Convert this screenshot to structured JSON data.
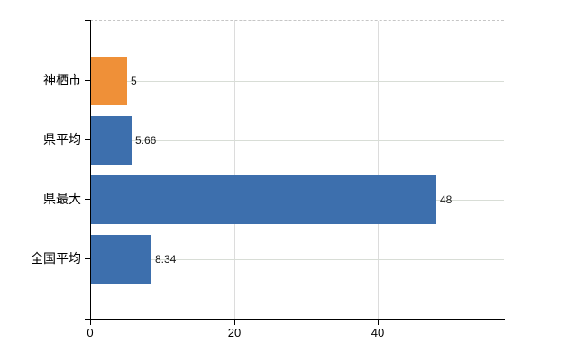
{
  "chart_data": {
    "type": "bar",
    "orientation": "horizontal",
    "title": "",
    "xlabel": "",
    "ylabel": "",
    "categories": [
      "神栖市",
      "県平均",
      "県最大",
      "全国平均"
    ],
    "values": [
      5,
      5.66,
      48,
      8.34
    ],
    "value_labels": [
      "5",
      "5.66",
      "48",
      "8.34"
    ],
    "bar_colors": [
      "#ef9038",
      "#3d6fad",
      "#3d6fad",
      "#3d6fad"
    ],
    "x_ticks": [
      0,
      20,
      40
    ],
    "x_tick_labels": [
      "0",
      "20",
      "40"
    ],
    "xlim": [
      0,
      57.55
    ],
    "grid": true,
    "legend": false,
    "colors": {
      "highlight_bar": "#ef9038",
      "default_bar": "#3d6fad",
      "horizontal_gridline": "#d8ddd6",
      "vertical_gridline": "#dcdcdc",
      "axis": "#000000",
      "plot_top_border": "#c6c6c6",
      "text": "#1a1a1a",
      "background": "#ffffff"
    }
  }
}
